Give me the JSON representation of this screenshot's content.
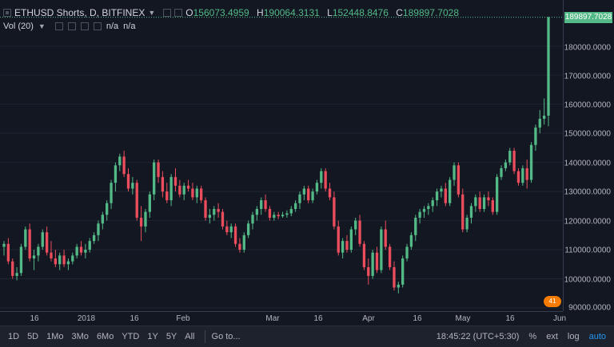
{
  "legend": {
    "title": "ETHUSD Shorts, D, BITFINEX",
    "ohlc": [
      {
        "k": "O",
        "v": "156073.4959"
      },
      {
        "k": "H",
        "v": "190064.3131"
      },
      {
        "k": "L",
        "v": "152448.8476"
      },
      {
        "k": "C",
        "v": "189897.7028"
      }
    ],
    "volume_label": "Vol (20)",
    "volume_values": [
      "n/a",
      "n/a"
    ]
  },
  "price_axis": {
    "ticks": [
      "180000.0000",
      "170000.0000",
      "160000.0000",
      "150000.0000",
      "140000.0000",
      "130000.0000",
      "120000.0000",
      "110000.0000",
      "100000.0000",
      "90000.0000"
    ],
    "last_price": "189897.7028"
  },
  "time_axis": {
    "ticks": [
      "16",
      "2018",
      "16",
      "Feb",
      "Mar",
      "16",
      "Apr",
      "16",
      "May",
      "16",
      "Jun"
    ]
  },
  "badge": "41",
  "toolbar": {
    "timeframes": [
      "1D",
      "5D",
      "1Mo",
      "3Mo",
      "6Mo",
      "YTD",
      "1Y",
      "5Y",
      "All"
    ],
    "goto": "Go to...",
    "clock": "18:45:22 (UTC+5:30)",
    "percent": "%",
    "ext": "ext",
    "log": "log",
    "auto": "auto"
  },
  "colors": {
    "up": "#53b987",
    "down": "#eb4d5c",
    "bg": "#131722",
    "accent": "#2196f3"
  },
  "chart_data": {
    "type": "candlestick",
    "ylim": [
      90000,
      190064.3131
    ],
    "candles": [
      [
        111000,
        113000,
        108000,
        112000
      ],
      [
        112000,
        114000,
        105000,
        106000
      ],
      [
        106000,
        107000,
        100000,
        101000
      ],
      [
        101000,
        104000,
        99500,
        102000
      ],
      [
        102000,
        112000,
        101000,
        111000
      ],
      [
        111000,
        118000,
        110000,
        117000
      ],
      [
        117000,
        119000,
        106000,
        107000
      ],
      [
        107000,
        110000,
        103000,
        108000
      ],
      [
        108000,
        112000,
        106000,
        111000
      ],
      [
        111000,
        117000,
        110000,
        116000
      ],
      [
        116000,
        118000,
        108000,
        109000
      ],
      [
        109000,
        113000,
        106000,
        107000
      ],
      [
        107000,
        110000,
        104000,
        105000
      ],
      [
        105000,
        109000,
        103000,
        108000
      ],
      [
        108000,
        110000,
        104000,
        105000
      ],
      [
        105000,
        107000,
        103000,
        106000
      ],
      [
        106000,
        109000,
        105000,
        108000
      ],
      [
        108000,
        112000,
        107000,
        111000
      ],
      [
        111000,
        113000,
        108000,
        109000
      ],
      [
        109000,
        112000,
        107000,
        110000
      ],
      [
        110000,
        114000,
        109000,
        113000
      ],
      [
        113000,
        116000,
        112000,
        115000
      ],
      [
        115000,
        120000,
        113000,
        119000
      ],
      [
        119000,
        123000,
        117000,
        122000
      ],
      [
        122000,
        127000,
        120000,
        126000
      ],
      [
        126000,
        134000,
        124000,
        133000
      ],
      [
        133000,
        140000,
        130000,
        139000
      ],
      [
        139000,
        143000,
        137000,
        142000
      ],
      [
        142000,
        144000,
        135000,
        136000
      ],
      [
        136000,
        138000,
        130000,
        131000
      ],
      [
        131000,
        135000,
        129000,
        133000
      ],
      [
        133000,
        134000,
        120000,
        121000
      ],
      [
        121000,
        125000,
        113000,
        118000
      ],
      [
        118000,
        124000,
        116000,
        123000
      ],
      [
        123000,
        130000,
        121000,
        129000
      ],
      [
        129000,
        141000,
        127000,
        140000
      ],
      [
        140000,
        141000,
        133000,
        135000
      ],
      [
        135000,
        137000,
        128000,
        130000
      ],
      [
        130000,
        133000,
        126000,
        127000
      ],
      [
        127000,
        136000,
        125000,
        135000
      ],
      [
        135000,
        138000,
        130000,
        132000
      ],
      [
        132000,
        134000,
        128000,
        129000
      ],
      [
        129000,
        133000,
        127000,
        132000
      ],
      [
        132000,
        134000,
        130000,
        131000
      ],
      [
        131000,
        133000,
        127000,
        128000
      ],
      [
        128000,
        132000,
        126000,
        131000
      ],
      [
        131000,
        132000,
        126000,
        127000
      ],
      [
        127000,
        128000,
        120000,
        121000
      ],
      [
        121000,
        124000,
        119000,
        122000
      ],
      [
        122000,
        125000,
        120000,
        124000
      ],
      [
        124000,
        126000,
        121000,
        123000
      ],
      [
        123000,
        124000,
        117000,
        118000
      ],
      [
        118000,
        120000,
        115000,
        116000
      ],
      [
        116000,
        119000,
        114000,
        118000
      ],
      [
        118000,
        119000,
        111000,
        112000
      ],
      [
        112000,
        114000,
        109000,
        110000
      ],
      [
        110000,
        116000,
        109000,
        115000
      ],
      [
        115000,
        120000,
        114000,
        119000
      ],
      [
        119000,
        123000,
        117000,
        122000
      ],
      [
        122000,
        125000,
        120000,
        124000
      ],
      [
        124000,
        128000,
        122000,
        127000
      ],
      [
        127000,
        129000,
        123000,
        124000
      ],
      [
        124000,
        125000,
        120000,
        121000
      ],
      [
        121000,
        123000,
        120000,
        122000
      ],
      [
        122000,
        123000,
        120500,
        121500
      ],
      [
        121500,
        123000,
        121000,
        122000
      ],
      [
        122000,
        123500,
        121000,
        122500
      ],
      [
        122500,
        125000,
        121500,
        124000
      ],
      [
        124000,
        127000,
        123000,
        126000
      ],
      [
        126000,
        130000,
        124000,
        129000
      ],
      [
        129000,
        132000,
        127000,
        131000
      ],
      [
        131000,
        132000,
        126000,
        127000
      ],
      [
        127000,
        131000,
        126000,
        130000
      ],
      [
        130000,
        134000,
        129000,
        133000
      ],
      [
        133000,
        138000,
        131000,
        137000
      ],
      [
        137000,
        138000,
        130000,
        131000
      ],
      [
        131000,
        133000,
        127000,
        128000
      ],
      [
        128000,
        130000,
        117000,
        118000
      ],
      [
        118000,
        120000,
        108000,
        109000
      ],
      [
        109000,
        114000,
        107000,
        113000
      ],
      [
        113000,
        115000,
        109000,
        110000
      ],
      [
        110000,
        118000,
        109000,
        117000
      ],
      [
        117000,
        121000,
        115000,
        120000
      ],
      [
        120000,
        122000,
        111000,
        112000
      ],
      [
        112000,
        113000,
        103000,
        104000
      ],
      [
        104000,
        107000,
        98000,
        101000
      ],
      [
        101000,
        110000,
        100000,
        109000
      ],
      [
        109000,
        111000,
        102000,
        103000
      ],
      [
        103000,
        118000,
        102000,
        117000
      ],
      [
        117000,
        120000,
        110000,
        111000
      ],
      [
        111000,
        112000,
        103000,
        104000
      ],
      [
        104000,
        106000,
        96000,
        97000
      ],
      [
        97000,
        99000,
        95000,
        98000
      ],
      [
        98000,
        108000,
        97000,
        107000
      ],
      [
        107000,
        112000,
        106000,
        111000
      ],
      [
        111000,
        116000,
        110000,
        115000
      ],
      [
        115000,
        122000,
        113000,
        121000
      ],
      [
        121000,
        124000,
        119000,
        123000
      ],
      [
        123000,
        125000,
        121000,
        124000
      ],
      [
        124000,
        126000,
        122000,
        125000
      ],
      [
        125000,
        128000,
        123000,
        127000
      ],
      [
        127000,
        131000,
        125000,
        130000
      ],
      [
        130000,
        132000,
        128000,
        131000
      ],
      [
        131000,
        133000,
        125000,
        126000
      ],
      [
        126000,
        135000,
        125000,
        134000
      ],
      [
        134000,
        140000,
        132000,
        139000
      ],
      [
        139000,
        140000,
        128000,
        129000
      ],
      [
        129000,
        131000,
        116000,
        117000
      ],
      [
        117000,
        122000,
        116000,
        121000
      ],
      [
        121000,
        126000,
        119000,
        125000
      ],
      [
        125000,
        129000,
        123000,
        128000
      ],
      [
        128000,
        130000,
        123000,
        124000
      ],
      [
        124000,
        129000,
        123000,
        128000
      ],
      [
        128000,
        130000,
        125000,
        127000
      ],
      [
        127000,
        128000,
        122000,
        123000
      ],
      [
        123000,
        136000,
        122000,
        135000
      ],
      [
        135000,
        139000,
        134000,
        138000
      ],
      [
        138000,
        141000,
        137000,
        140000
      ],
      [
        140000,
        145000,
        139000,
        144000
      ],
      [
        144000,
        145000,
        136000,
        137000
      ],
      [
        137000,
        138000,
        132000,
        133000
      ],
      [
        133000,
        139000,
        132000,
        138000
      ],
      [
        138000,
        141000,
        131000,
        134000
      ],
      [
        134000,
        147000,
        133000,
        146000
      ],
      [
        146000,
        153000,
        144000,
        152000
      ],
      [
        152000,
        158000,
        150000,
        155000
      ],
      [
        155000,
        162000,
        153000,
        156073.4959
      ],
      [
        156073.4959,
        190064.3131,
        152448.8476,
        189897.7028
      ]
    ]
  }
}
